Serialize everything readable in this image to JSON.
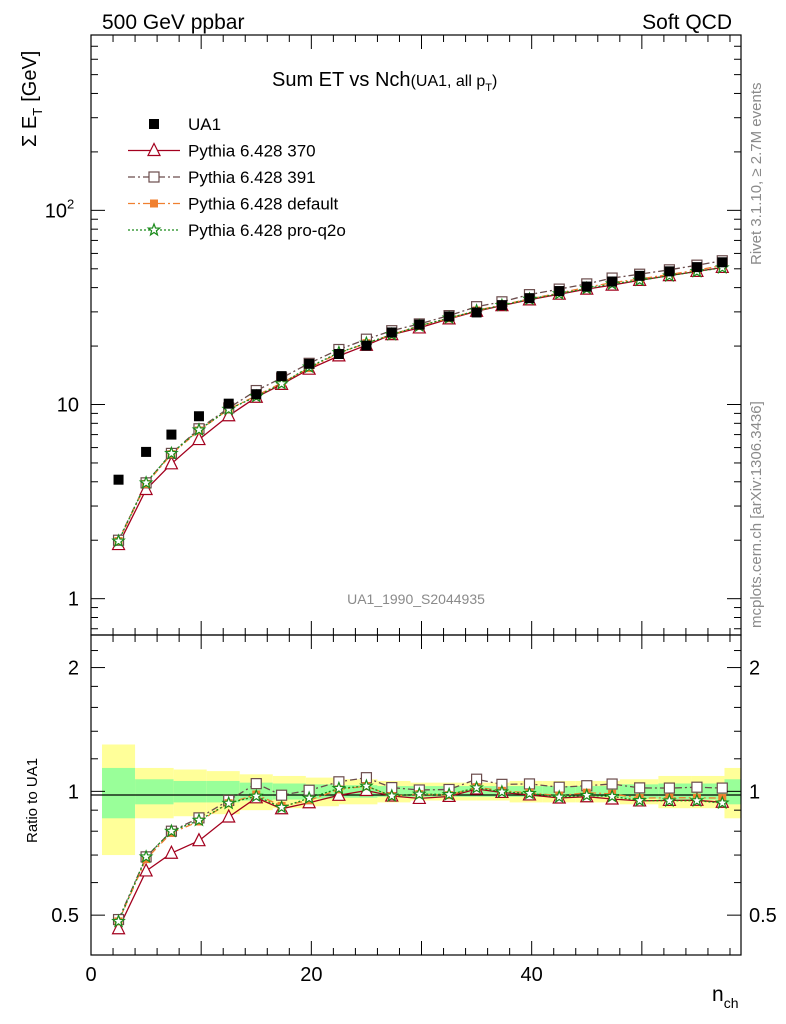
{
  "header": {
    "left": "500 GeV ppbar",
    "right": "Soft QCD"
  },
  "side_labels": {
    "rivet": "Rivet 3.1.10, ≥ 2.7M events",
    "mcplots": "mcplots.cern.ch [arXiv:1306.3436]"
  },
  "chart_data": {
    "type": "scatter",
    "title": "Sum ET vs Nch",
    "title_suffix": "(UA1, all p",
    "title_suffix_sub": "T",
    "title_suffix_end": ")",
    "analysis_id": "UA1_1990_S2044935",
    "xlabel": "n",
    "xlabel_sub": "ch",
    "ylabel_main": "Σ E",
    "ylabel_sub": "T",
    "ylabel_unit": "[GeV]",
    "ratio_ylabel": "Ratio to UA1",
    "xlim": [
      0,
      59
    ],
    "ylim_main": [
      0.65,
      800
    ],
    "ylim_ratio": [
      0.4,
      2.4
    ],
    "y_scale_main": "log",
    "y_scale_ratio": "log",
    "x_ticks": [
      "0",
      "20",
      "40"
    ],
    "x_tick_values": [
      0,
      20,
      40
    ],
    "main_ticks": [
      "1",
      "10",
      "10",
      "2"
    ],
    "main_tick_values": [
      1,
      10,
      100
    ],
    "ratio_ticks": [
      "0.5",
      "1",
      "2"
    ],
    "ratio_tick_values": [
      0.5,
      1,
      2
    ],
    "legend_position": "top-left",
    "x": [
      2.5,
      5,
      7.3,
      9.8,
      12.5,
      15,
      17.3,
      19.8,
      22.5,
      25,
      27.3,
      29.8,
      32.5,
      35,
      37.3,
      39.8,
      42.5,
      45,
      47.3,
      49.8,
      52.5,
      55,
      57.3
    ],
    "data": {
      "name": "UA1",
      "values": [
        4.1,
        5.7,
        7.0,
        8.7,
        10.1,
        11.3,
        14.0,
        16.2,
        18.2,
        20.1,
        23.5,
        25.8,
        28.4,
        29.8,
        32.5,
        35.3,
        38.4,
        40.5,
        43.0,
        46.0,
        48.5,
        51.0,
        54.0
      ]
    },
    "bands": {
      "yellow_x_edges": [
        1,
        4,
        7.5,
        10.5,
        13.5,
        16.5,
        19.5,
        22.5,
        26,
        29,
        32,
        35,
        38,
        41,
        44,
        48,
        51.5,
        54.5,
        57.5,
        59
      ],
      "yellow_half_widths": [
        0.3,
        0.14,
        0.13,
        0.12,
        0.1,
        0.09,
        0.08,
        0.07,
        0.06,
        0.05,
        0.05,
        0.05,
        0.06,
        0.06,
        0.06,
        0.07,
        0.09,
        0.09,
        0.14
      ],
      "green_half_widths": [
        0.14,
        0.07,
        0.06,
        0.06,
        0.05,
        0.045,
        0.04,
        0.035,
        0.03,
        0.03,
        0.03,
        0.03,
        0.03,
        0.03,
        0.03,
        0.04,
        0.045,
        0.045,
        0.07
      ]
    },
    "series": [
      {
        "name": "Pythia 6.428 370",
        "color": "#a3001e",
        "marker": "triangle-open",
        "dash": "",
        "values": [
          1.9,
          3.65,
          4.95,
          6.6,
          8.75,
          10.9,
          12.7,
          15.2,
          17.8,
          20.2,
          22.9,
          24.8,
          27.6,
          30.2,
          32.3,
          34.6,
          37.0,
          39.3,
          41.2,
          43.6,
          46.1,
          48.5,
          50.8
        ]
      },
      {
        "name": "Pythia 6.428 391",
        "color": "#6b4c4c",
        "marker": "square-open",
        "dash": "7,3,2,3",
        "values": [
          2.0,
          3.95,
          5.6,
          7.5,
          9.6,
          11.8,
          13.7,
          16.3,
          19.2,
          21.7,
          24.0,
          26.0,
          28.7,
          31.9,
          33.8,
          36.8,
          39.3,
          41.8,
          44.8,
          46.9,
          49.4,
          52.2,
          55.0
        ]
      },
      {
        "name": "Pythia 6.428 default",
        "color": "#f08030",
        "marker": "square-filled",
        "dash": "7,3,2,3",
        "values": [
          1.98,
          3.9,
          5.55,
          7.35,
          9.45,
          11.1,
          12.9,
          15.4,
          18.4,
          20.7,
          22.9,
          25.4,
          27.8,
          30.5,
          32.6,
          35.0,
          37.5,
          40.2,
          42.4,
          44.3,
          46.8,
          49.2,
          52.0
        ]
      },
      {
        "name": "Pythia 6.428 pro-q2o",
        "color": "#1a8a1a",
        "marker": "star-open",
        "dash": "2,2",
        "values": [
          1.98,
          3.95,
          5.6,
          7.4,
          9.45,
          11.0,
          12.8,
          15.6,
          18.5,
          20.7,
          22.9,
          25.4,
          27.9,
          30.4,
          32.4,
          34.9,
          37.2,
          39.6,
          41.8,
          43.7,
          46.0,
          48.4,
          50.6
        ]
      }
    ]
  }
}
